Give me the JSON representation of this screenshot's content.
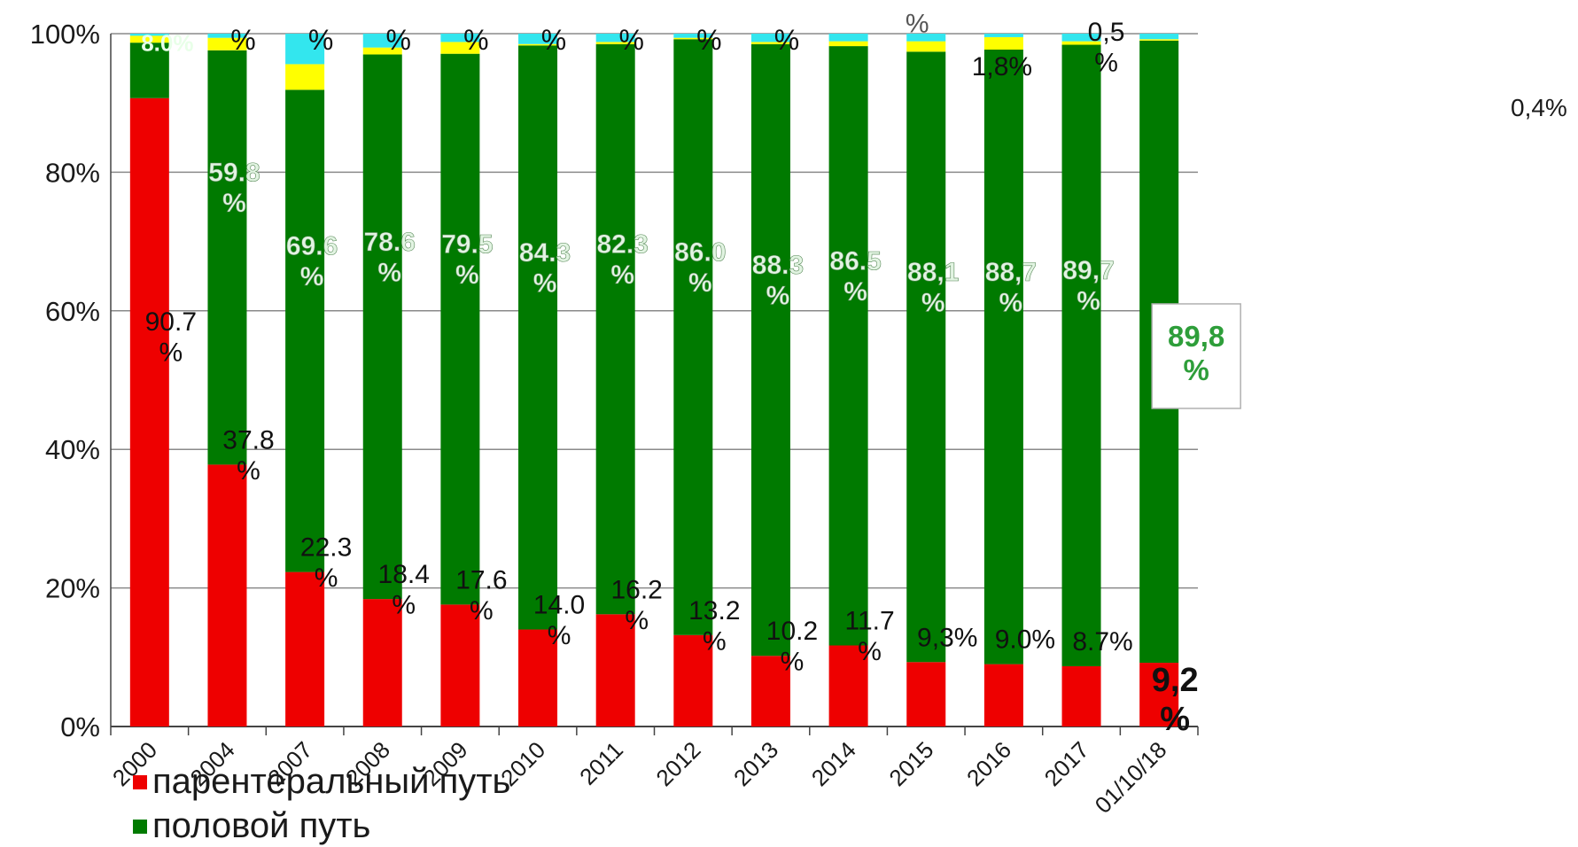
{
  "chart_data": {
    "type": "bar",
    "stacked": true,
    "categories": [
      "2000",
      "2004",
      "2007",
      "2008",
      "2009",
      "2010",
      "2011",
      "2012",
      "2013",
      "2014",
      "2015",
      "2016",
      "2017",
      "01/10/18"
    ],
    "ylim": [
      0,
      100
    ],
    "yticks": [
      "0%",
      "20%",
      "40%",
      "60%",
      "80%",
      "100%"
    ],
    "grid": true,
    "series": [
      {
        "name": "парентеральный путь",
        "color": "#ee0000",
        "values": [
          90.7,
          37.8,
          22.3,
          18.4,
          17.6,
          14.0,
          16.2,
          13.2,
          10.2,
          11.7,
          9.3,
          9.0,
          8.7,
          9.2
        ],
        "labels": [
          "90.7\n%",
          "37.8\n%",
          "22.3\n%",
          "18.4\n%",
          "17.6\n%",
          "14.0\n%",
          "16.2\n%",
          "13.2\n%",
          "10.2\n%",
          "11.7\n%",
          "9,3%",
          "9.0%",
          "8.7%",
          "9,2\n%"
        ]
      },
      {
        "name": "половой путь",
        "color": "#007a00",
        "values": [
          8.0,
          59.8,
          69.6,
          78.6,
          79.5,
          84.3,
          82.3,
          86.0,
          88.3,
          86.5,
          88.1,
          88.7,
          89.7,
          89.8
        ],
        "labels": [
          "8.0%",
          "59.8\n%",
          "69.6\n%",
          "78.6\n%",
          "79.5\n%",
          "84.3\n%",
          "82.3\n%",
          "86.0\n%",
          "88.3\n%",
          "86.5\n%",
          "88,1\n%",
          "88,7\n%",
          "89,7\n%",
          "89,8\n%"
        ]
      },
      {
        "color": "#ffff00",
        "values": [
          1.0,
          1.8,
          3.7,
          1.0,
          1.7,
          0.2,
          0.3,
          0.2,
          0.3,
          0.7,
          1.5,
          1.8,
          0.5,
          0.2
        ]
      },
      {
        "color": "#33e6ee",
        "values": [
          0.3,
          0.6,
          4.4,
          2.0,
          1.2,
          1.5,
          1.2,
          0.6,
          1.2,
          1.1,
          1.1,
          0.5,
          1.1,
          0.8
        ]
      }
    ],
    "extra_labels": [
      "%",
      "%",
      "%",
      "%",
      "%",
      "%",
      "%",
      "%",
      "1,8%",
      "0,5\n%",
      "%",
      "0,4%"
    ],
    "legend": [
      "парентеральный путь",
      "половой путь"
    ],
    "legend_position": "bottom-left"
  }
}
